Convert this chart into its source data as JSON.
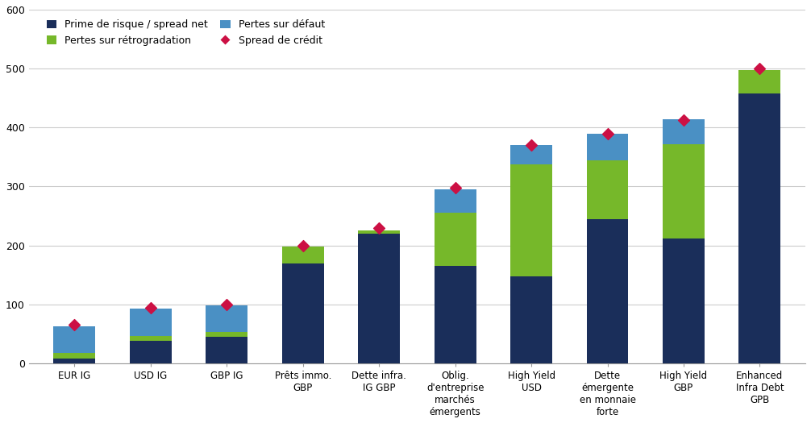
{
  "categories": [
    "EUR IG",
    "USD IG",
    "GBP IG",
    "Prêts immo.\nGBP",
    "Dette infra.\nIG GBP",
    "Oblig.\nd'entreprise\nmarchés\némergents",
    "High Yield\nUSD",
    "Dette\némergente\nen monnaie\nforte",
    "High Yield\nGBP",
    "Enhanced\nInfra Debt\nGPB"
  ],
  "prime_de_risque": [
    8,
    38,
    45,
    170,
    220,
    165,
    148,
    245,
    212,
    458
  ],
  "pertes_retrogradation": [
    10,
    8,
    8,
    28,
    5,
    90,
    190,
    100,
    160,
    40
  ],
  "pertes_defaut": [
    45,
    47,
    45,
    0,
    0,
    40,
    33,
    44,
    42,
    0
  ],
  "spread_de_credit": [
    65,
    95,
    100,
    200,
    230,
    298,
    370,
    390,
    413,
    500
  ],
  "color_prime": "#1a2e5a",
  "color_retrogradation": "#76b82a",
  "color_defaut": "#4a90c4",
  "color_spread": "#cc1044",
  "ylim": [
    0,
    600
  ],
  "yticks": [
    0,
    100,
    200,
    300,
    400,
    500,
    600
  ],
  "legend_prime": "Prime de risque / spread net",
  "legend_retrogradation": "Pertes sur rétrogradation",
  "legend_defaut": "Pertes sur défaut",
  "legend_spread": "Spread de crédit",
  "background_color": "#ffffff",
  "grid_color": "#cccccc"
}
